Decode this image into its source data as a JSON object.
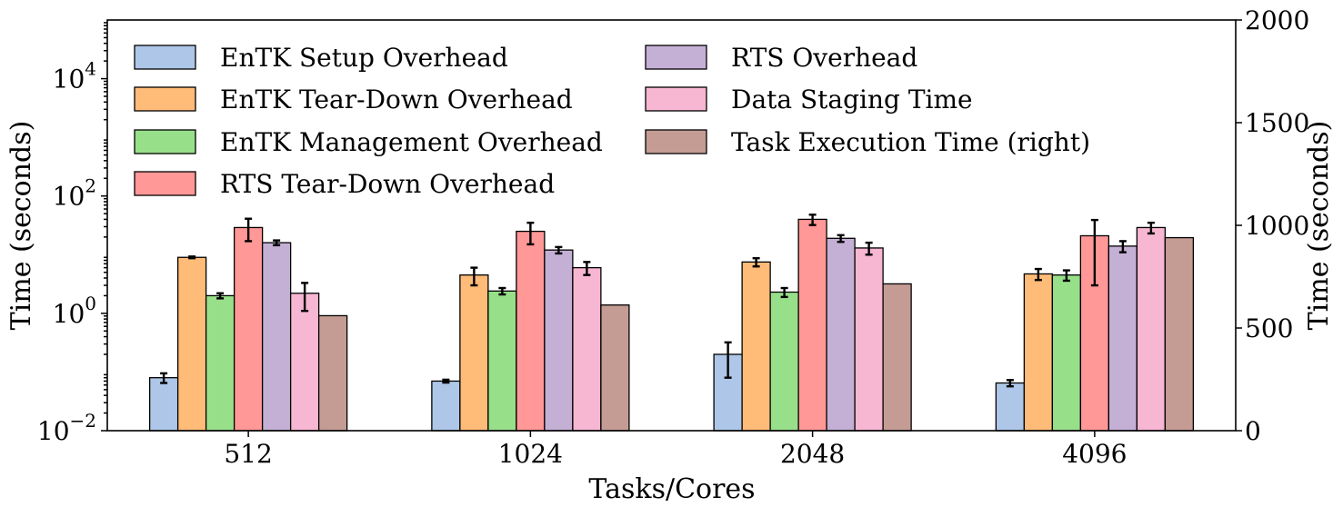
{
  "chart_data": {
    "type": "bar",
    "xlabel": "Tasks/Cores",
    "ylabel_left": "Time (seconds)",
    "ylabel_right": "Time (seconds)",
    "categories": [
      "512",
      "1024",
      "2048",
      "4096"
    ],
    "y_left_scale": "log",
    "y_left_lim": [
      0.01,
      100000
    ],
    "y_left_ticks": [
      {
        "base": "10",
        "exp": "−2",
        "value": 0.01
      },
      {
        "base": "10",
        "exp": "0",
        "value": 1
      },
      {
        "base": "10",
        "exp": "2",
        "value": 100
      },
      {
        "base": "10",
        "exp": "4",
        "value": 10000
      }
    ],
    "y_right_lim": [
      0,
      2000
    ],
    "y_right_ticks": [
      "0",
      "500",
      "1000",
      "1500",
      "2000"
    ],
    "legend_position": "top-left",
    "grid": false,
    "series": [
      {
        "name": "EnTK Setup Overhead",
        "color": "#aec7e8",
        "axis": "left",
        "values": [
          0.08,
          0.07,
          0.2,
          0.065
        ],
        "errors": [
          0.015,
          0.004,
          0.12,
          0.008
        ]
      },
      {
        "name": "EnTK Tear-Down Overhead",
        "color": "#ffbb78",
        "axis": "left",
        "values": [
          9.0,
          4.5,
          7.5,
          4.7
        ],
        "errors": [
          0.3,
          1.5,
          1.2,
          1.0
        ]
      },
      {
        "name": "EnTK Management Overhead",
        "color": "#98df8a",
        "axis": "left",
        "values": [
          2.0,
          2.4,
          2.3,
          4.5
        ],
        "errors": [
          0.2,
          0.3,
          0.4,
          0.9
        ]
      },
      {
        "name": "RTS Tear-Down Overhead",
        "color": "#ff9896",
        "axis": "left",
        "values": [
          29,
          25,
          40,
          21
        ],
        "errors": [
          12,
          10,
          8,
          18
        ]
      },
      {
        "name": "RTS Overhead",
        "color": "#c5b0d5",
        "axis": "left",
        "values": [
          16,
          12,
          19,
          14
        ],
        "errors": [
          1.5,
          1.5,
          2.5,
          3
        ]
      },
      {
        "name": "Data Staging Time",
        "color": "#f7b6d2",
        "axis": "left",
        "values": [
          2.2,
          6.0,
          13,
          29
        ],
        "errors": [
          1.1,
          1.5,
          3,
          6
        ]
      },
      {
        "name": "Task Execution Time (right)",
        "color": "#c49c94",
        "axis": "right",
        "values": [
          560,
          612,
          715,
          940
        ],
        "errors": [
          0,
          0,
          0,
          0
        ]
      }
    ]
  }
}
